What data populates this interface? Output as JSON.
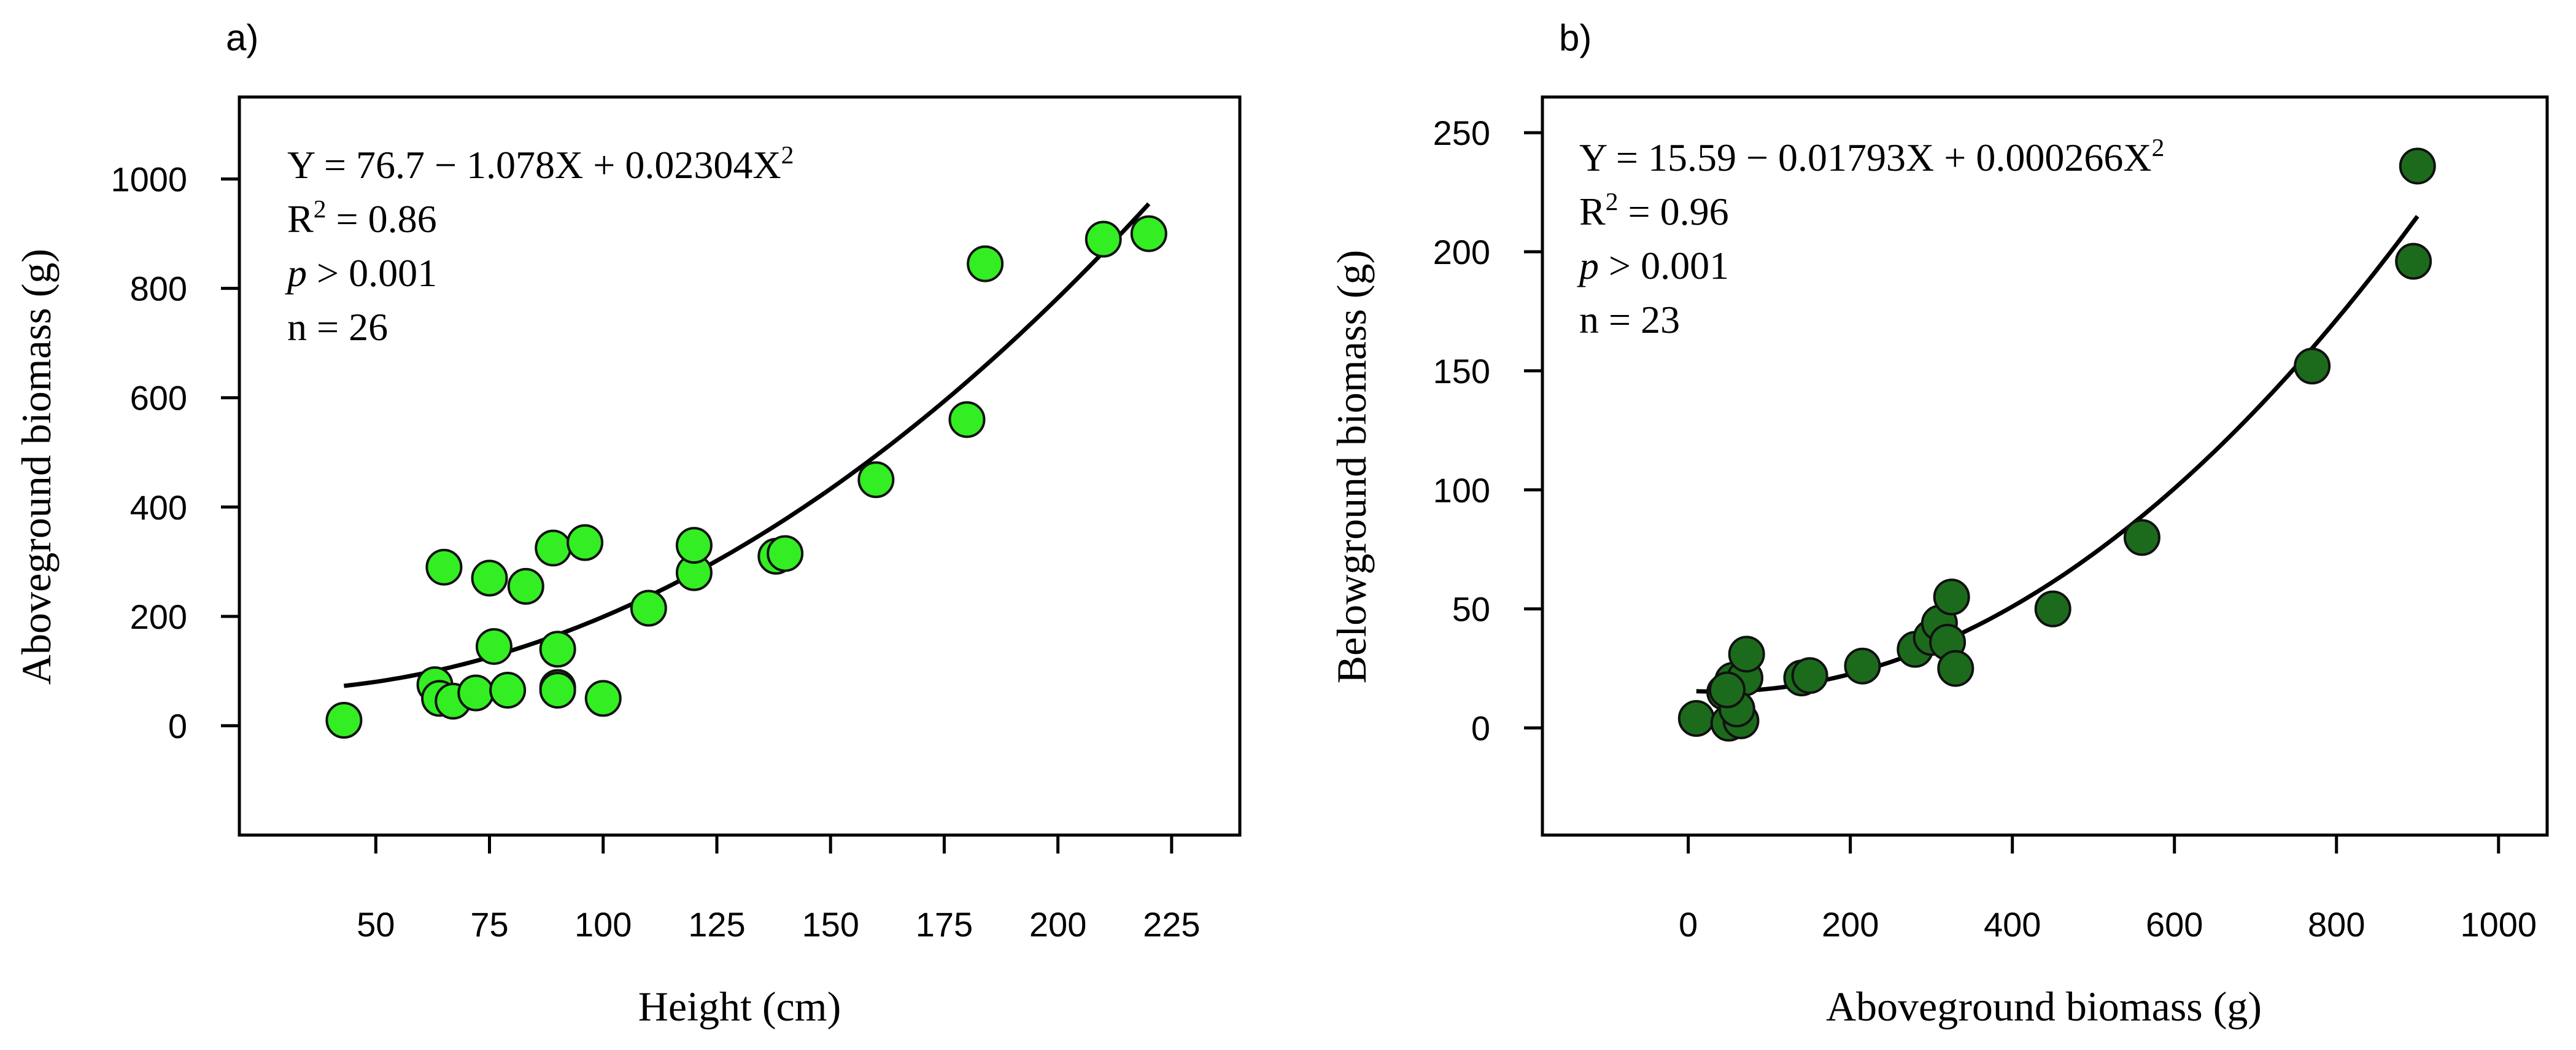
{
  "chart_data": [
    {
      "type": "scatter",
      "panel_label": "a)",
      "xlabel": "Height (cm)",
      "ylabel": "Aboveground biomass (g)",
      "xlim": [
        20,
        240
      ],
      "ylim": [
        -200,
        1150
      ],
      "xticks": [
        "50",
        "75",
        "100",
        "125",
        "150",
        "175",
        "200",
        "225"
      ],
      "yticks": [
        "0",
        "200",
        "400",
        "600",
        "800",
        "1000"
      ],
      "grid": false,
      "point_color": "#33ee22",
      "equation": {
        "lines": [
          [
            "Y = 76.7 − 1.078X + 0.02304X",
            "2",
            ""
          ],
          [
            "R",
            "2",
            " = 0.86"
          ],
          [
            "p",
            "",
            " > 0.001"
          ],
          [
            "n = 26",
            "",
            ""
          ]
        ]
      },
      "fit": {
        "coeffs": [
          76.7,
          -1.078,
          0.02304
        ],
        "x_range": [
          43,
          220
        ]
      },
      "x": [
        43,
        63,
        64,
        65,
        67,
        72,
        75,
        76,
        79,
        83,
        89,
        90,
        90,
        90,
        96,
        100,
        110,
        120,
        120,
        138,
        140,
        160,
        180,
        184,
        210,
        220
      ],
      "y": [
        10,
        75,
        50,
        290,
        45,
        60,
        270,
        145,
        65,
        255,
        325,
        140,
        70,
        65,
        335,
        50,
        215,
        280,
        330,
        310,
        315,
        450,
        560,
        845,
        890,
        900
      ]
    },
    {
      "type": "scatter",
      "panel_label": "b)",
      "xlabel": "Aboveground biomass (g)",
      "ylabel": "Belowground biomass (g)",
      "xlim": [
        -180,
        1060
      ],
      "ylim": [
        -45,
        265
      ],
      "xticks": [
        "0",
        "200",
        "400",
        "600",
        "800",
        "1000"
      ],
      "yticks": [
        "0",
        "50",
        "100",
        "150",
        "200",
        "250"
      ],
      "grid": false,
      "point_color": "#1c6b1c",
      "equation": {
        "lines": [
          [
            "Y = 15.59 − 0.01793X + 0.000266X",
            "2",
            ""
          ],
          [
            "R",
            "2",
            " = 0.96"
          ],
          [
            "p",
            "",
            " > 0.001"
          ],
          [
            "n = 23",
            "",
            ""
          ]
        ]
      },
      "fit": {
        "coeffs": [
          15.59,
          -0.01793,
          0.000266
        ],
        "x_range": [
          10,
          900
        ]
      },
      "x": [
        10,
        45,
        50,
        55,
        65,
        70,
        72,
        140,
        150,
        215,
        280,
        300,
        310,
        320,
        325,
        330,
        450,
        560,
        770,
        895,
        900,
        60,
        48
      ],
      "y": [
        4,
        15,
        2,
        20,
        3,
        21,
        31,
        21,
        22,
        26,
        33,
        38,
        44,
        36,
        55,
        25,
        50,
        80,
        152,
        196,
        236,
        8,
        16
      ]
    }
  ]
}
